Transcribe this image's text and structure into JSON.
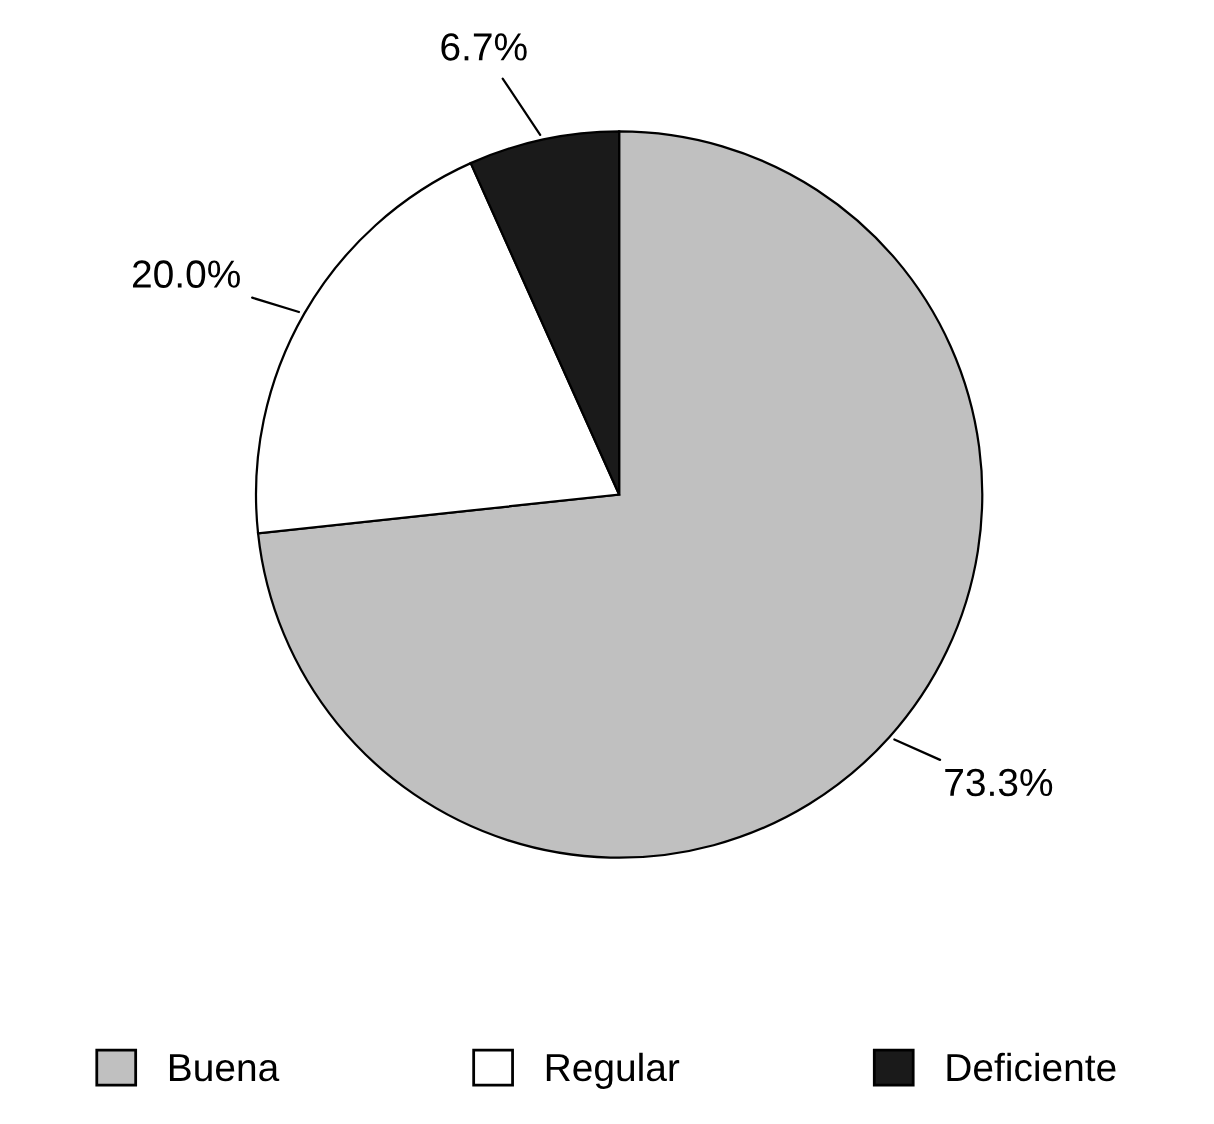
{
  "chart_data": {
    "type": "pie",
    "categories": [
      "Buena",
      "Regular",
      "Deficiente"
    ],
    "values": [
      73.3,
      20.0,
      6.7
    ],
    "colors": [
      "#c0c0c0",
      "#ffffff",
      "#1a1a1a"
    ],
    "value_labels": [
      "73.3%",
      "20.0%",
      "6.7%"
    ],
    "legend": "bottom"
  }
}
